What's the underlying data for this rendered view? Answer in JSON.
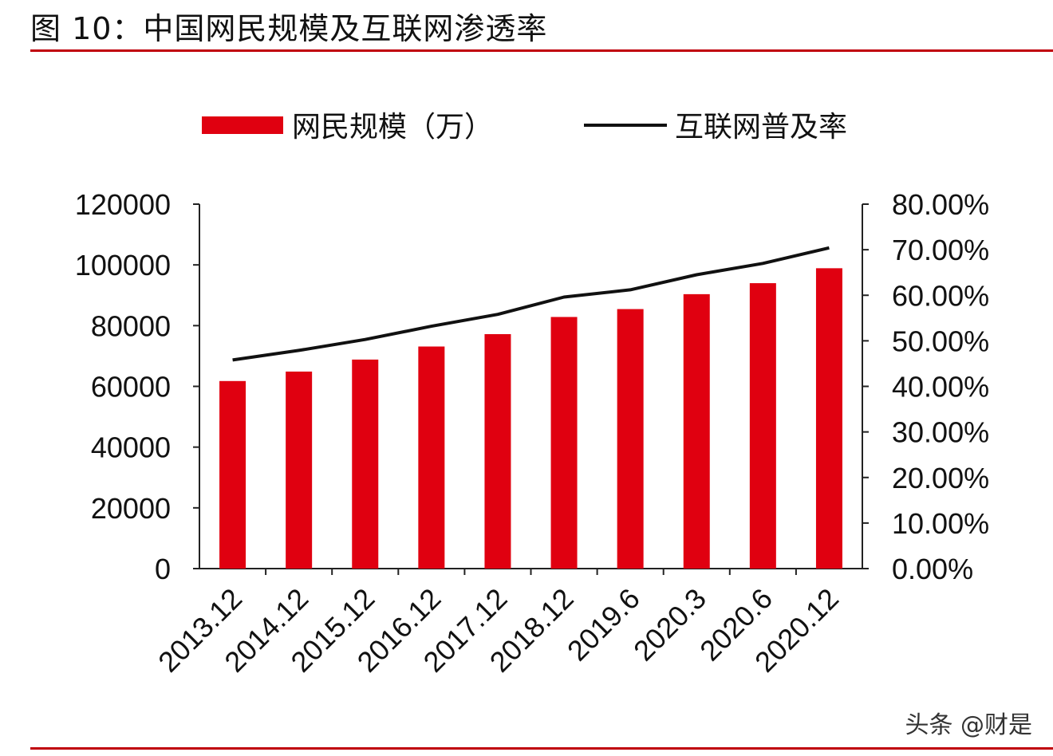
{
  "figure_title": "图 10：中国网民规模及互联网渗透率",
  "watermark": "头条 @财是",
  "colors": {
    "bars": "#e00010",
    "line": "#111111",
    "rule": "#c0000a"
  },
  "chart_data": {
    "type": "bar",
    "title": "",
    "categories": [
      "2013.12",
      "2014.12",
      "2015.12",
      "2016.12",
      "2017.12",
      "2018.12",
      "2019.6",
      "2020.3",
      "2020.6",
      "2020.12"
    ],
    "series": [
      {
        "name": "网民规模（万）",
        "type": "bar",
        "axis": "left",
        "values": [
          61758,
          64875,
          68826,
          73125,
          77198,
          82851,
          85449,
          90359,
          93984,
          98899
        ]
      },
      {
        "name": "互联网普及率",
        "type": "line",
        "axis": "right",
        "values": [
          45.8,
          47.9,
          50.3,
          53.2,
          55.8,
          59.6,
          61.2,
          64.5,
          67.0,
          70.4
        ]
      }
    ],
    "y_left": {
      "min": 0,
      "max": 120000,
      "ticks": [
        "0",
        "20000",
        "40000",
        "60000",
        "80000",
        "100000",
        "120000"
      ]
    },
    "y_right": {
      "min": 0,
      "max": 80,
      "ticks": [
        "0.00%",
        "10.00%",
        "20.00%",
        "30.00%",
        "40.00%",
        "50.00%",
        "60.00%",
        "70.00%",
        "80.00%"
      ]
    },
    "legend_position": "top",
    "grid": false
  }
}
